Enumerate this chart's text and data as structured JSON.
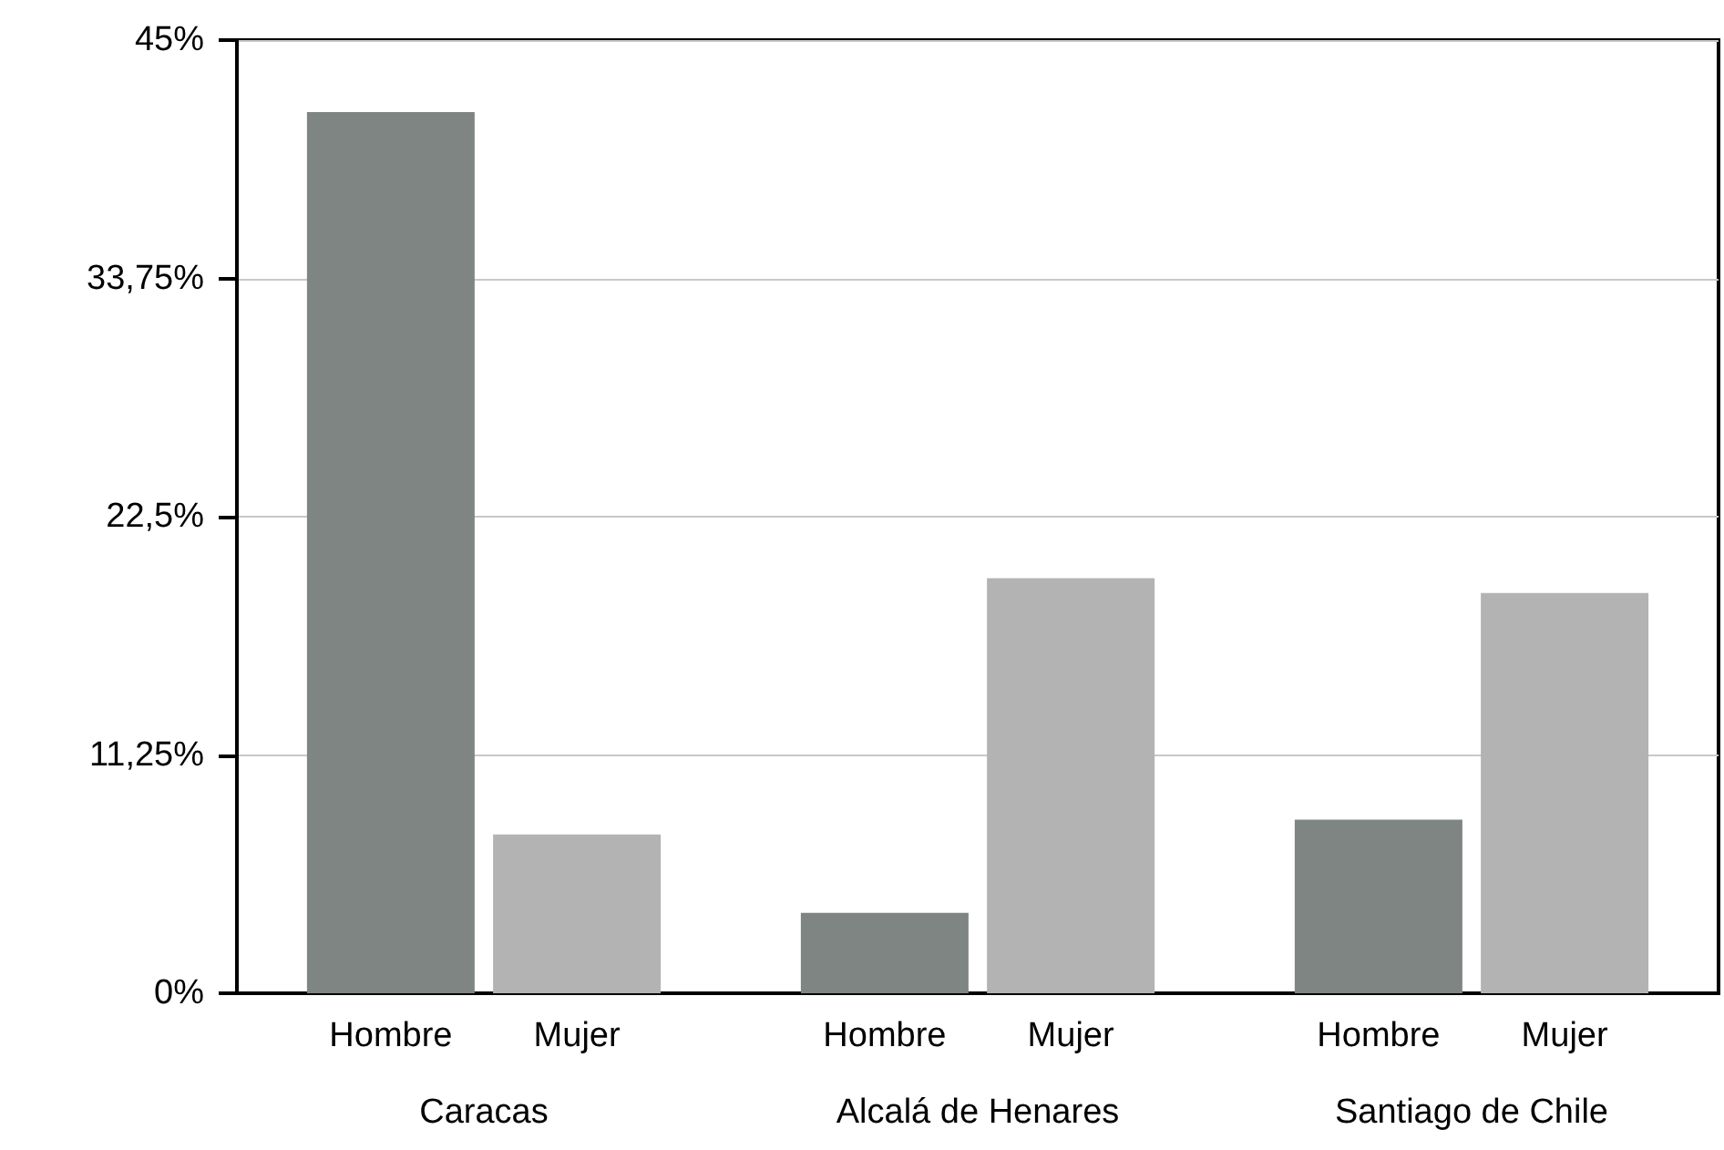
{
  "chart_data": {
    "type": "bar",
    "categories": [
      "Caracas",
      "Alcalá de Henares",
      "Santiago de Chile"
    ],
    "series": [
      {
        "name": "Hombre",
        "color": "#7f8582",
        "values": [
          41.6,
          3.8,
          8.2
        ]
      },
      {
        "name": "Mujer",
        "color": "#b3b3b3",
        "values": [
          7.5,
          19.6,
          18.9
        ]
      }
    ],
    "ylim": [
      0,
      45
    ],
    "yticks": [
      {
        "value": 0,
        "label": "0%"
      },
      {
        "value": 11.25,
        "label": "11,25%"
      },
      {
        "value": 22.5,
        "label": "22,5%"
      },
      {
        "value": 33.75,
        "label": "33,75%"
      },
      {
        "value": 45,
        "label": "45%"
      }
    ],
    "grid": "y",
    "legend": false
  }
}
